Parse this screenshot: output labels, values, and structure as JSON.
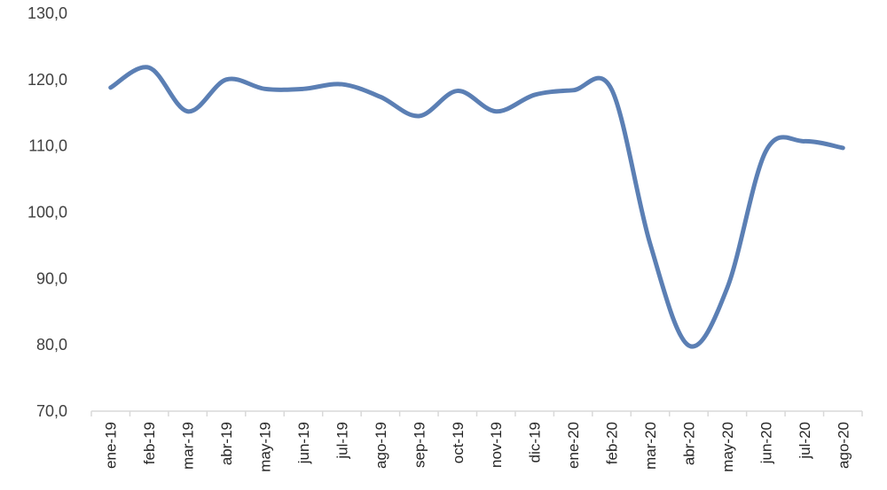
{
  "chart_data": {
    "type": "line",
    "title": "",
    "xlabel": "",
    "ylabel": "",
    "categories": [
      "ene-19",
      "feb-19",
      "mar-19",
      "abr-19",
      "may-19",
      "jun-19",
      "jul-19",
      "ago-19",
      "sep-19",
      "oct-19",
      "nov-19",
      "dic-19",
      "ene-20",
      "feb-20",
      "mar-20",
      "abr-20",
      "may-20",
      "jun-20",
      "jul-20",
      "ago-20"
    ],
    "series": [
      {
        "values": [
          118.8,
          121.8,
          115.2,
          120.0,
          118.6,
          118.6,
          119.3,
          117.4,
          114.5,
          118.3,
          115.2,
          117.7,
          118.4,
          118.5,
          95.2,
          79.9,
          88.6,
          109.2,
          110.7,
          109.7
        ]
      }
    ],
    "ylim": [
      70,
      130
    ],
    "yticks": [
      "70,0",
      "80,0",
      "90,0",
      "100,0",
      "110,0",
      "120,0",
      "130,0"
    ],
    "ytick_values": [
      70,
      80,
      90,
      100,
      110,
      120,
      130
    ],
    "grid": false,
    "legend": "none",
    "line_color": "#5b7fb4",
    "axis_color": "#d9d9d9"
  }
}
